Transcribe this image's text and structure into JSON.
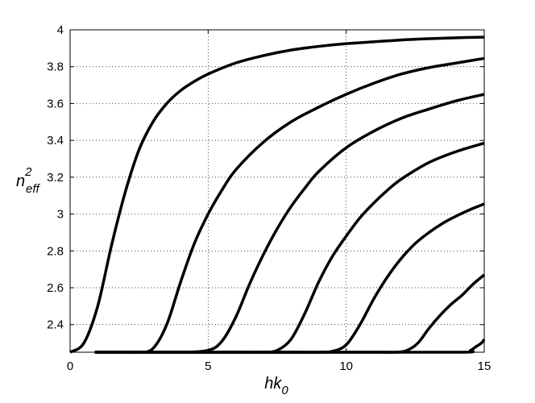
{
  "chart_data": {
    "type": "line",
    "title": "",
    "xlabel": {
      "main": "hk",
      "sub": "0"
    },
    "ylabel": {
      "main": "n",
      "sup": "2",
      "sub": "eff"
    },
    "xlim": [
      0,
      15
    ],
    "ylim": [
      2.25,
      4.0
    ],
    "xticks": [
      0,
      5,
      10,
      15
    ],
    "xtick_labels": [
      "0",
      "5",
      "10",
      "15"
    ],
    "yticks": [
      2.4,
      2.6,
      2.8,
      3.0,
      3.2,
      3.4,
      3.6,
      3.8,
      4.0
    ],
    "ytick_labels": [
      "2.4",
      "2.6",
      "2.8",
      "3",
      "3.2",
      "3.4",
      "3.6",
      "3.8",
      "4"
    ],
    "grid": true,
    "legend": "none",
    "line_color": "#000000",
    "series": [
      {
        "x": [
          0,
          0.5,
          1.0,
          1.5,
          2.0,
          2.5,
          3.0,
          3.5,
          4.0,
          4.5,
          5.0,
          6.0,
          7.0,
          8.0,
          9.0,
          10.0,
          11.0,
          12.0,
          13.0,
          14.0,
          15.0
        ],
        "y": [
          2.25,
          2.3,
          2.5,
          2.83,
          3.12,
          3.35,
          3.5,
          3.6,
          3.67,
          3.72,
          3.76,
          3.82,
          3.86,
          3.89,
          3.91,
          3.925,
          3.935,
          3.945,
          3.952,
          3.957,
          3.96
        ]
      },
      {
        "x": [
          0.9,
          1.5,
          2.0,
          2.5,
          3.0,
          3.5,
          4.0,
          4.5,
          5.0,
          5.5,
          6.0,
          7.0,
          8.0,
          9.0,
          10.0,
          11.0,
          12.0,
          13.0,
          14.0,
          15.0
        ],
        "y": [
          2.25,
          2.25,
          2.25,
          2.25,
          2.27,
          2.4,
          2.63,
          2.84,
          3.0,
          3.13,
          3.24,
          3.39,
          3.5,
          3.58,
          3.65,
          3.71,
          3.76,
          3.795,
          3.82,
          3.845
        ]
      },
      {
        "x": [
          0.9,
          2.0,
          3.0,
          4.0,
          5.0,
          5.5,
          6.0,
          6.5,
          7.0,
          7.5,
          8.0,
          8.5,
          9.0,
          10.0,
          11.0,
          12.0,
          13.0,
          14.0,
          15.0
        ],
        "y": [
          2.25,
          2.25,
          2.25,
          2.25,
          2.26,
          2.31,
          2.44,
          2.62,
          2.78,
          2.92,
          3.04,
          3.14,
          3.23,
          3.36,
          3.45,
          3.52,
          3.57,
          3.615,
          3.65
        ]
      },
      {
        "x": [
          0.9,
          3.0,
          5.0,
          6.0,
          7.0,
          7.5,
          8.0,
          8.5,
          9.0,
          9.5,
          10.0,
          10.5,
          11.0,
          11.5,
          12.0,
          13.0,
          14.0,
          15.0
        ],
        "y": [
          2.25,
          2.25,
          2.25,
          2.25,
          2.25,
          2.26,
          2.32,
          2.46,
          2.63,
          2.77,
          2.88,
          2.98,
          3.06,
          3.13,
          3.19,
          3.28,
          3.34,
          3.385
        ]
      },
      {
        "x": [
          0.9,
          3.0,
          6.0,
          8.0,
          9.0,
          9.5,
          10.0,
          10.5,
          11.0,
          11.5,
          12.0,
          12.5,
          13.0,
          13.5,
          14.0,
          14.5,
          15.0
        ],
        "y": [
          2.25,
          2.25,
          2.25,
          2.25,
          2.25,
          2.255,
          2.29,
          2.4,
          2.54,
          2.66,
          2.76,
          2.84,
          2.9,
          2.95,
          2.99,
          3.025,
          3.055
        ]
      },
      {
        "x": [
          0.9,
          4.0,
          8.0,
          11.0,
          11.8,
          12.2,
          12.6,
          13.0,
          13.4,
          13.8,
          14.2,
          14.6,
          15.0
        ],
        "y": [
          2.25,
          2.25,
          2.25,
          2.25,
          2.25,
          2.26,
          2.3,
          2.38,
          2.45,
          2.51,
          2.56,
          2.62,
          2.67
        ]
      },
      {
        "x": [
          0.9,
          5.0,
          10.0,
          14.2,
          14.5,
          14.7,
          14.9,
          15.0
        ],
        "y": [
          2.25,
          2.25,
          2.25,
          2.25,
          2.26,
          2.28,
          2.3,
          2.32
        ]
      }
    ]
  }
}
